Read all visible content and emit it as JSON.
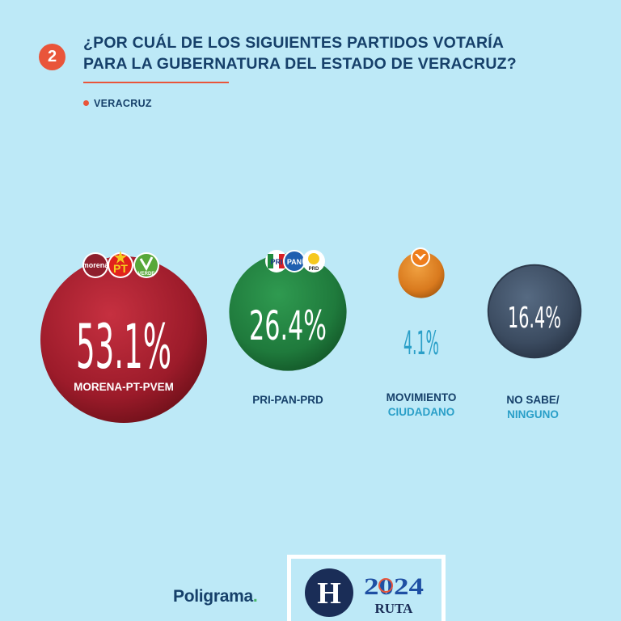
{
  "header": {
    "number": "2",
    "question_lines": [
      "¿POR CUÁL DE LOS SIGUIENTES PARTIDOS VOTARÍA",
      "PARA LA GUBERNATURA DEL ESTADO DE VERACRUZ?"
    ],
    "region": "VERACRUZ"
  },
  "chart_data": {
    "type": "bubble",
    "categories": [
      "MORENA-PT-PVEM",
      "PRI-PAN-PRD",
      "MOVIMIENTO CIUDADANO",
      "NO SABE/ NINGUNO"
    ],
    "values": [
      53.1,
      26.4,
      4.1,
      16.4
    ],
    "value_labels": [
      "53.1%",
      "26.4%",
      "4.1%",
      "16.4%"
    ],
    "label_lines": [
      [
        "MORENA-PT-PVEM"
      ],
      [
        "PRI-PAN-PRD"
      ],
      [
        "MOVIMIENTO",
        "CIUDADANO"
      ],
      [
        "NO SABE/",
        "NINGUNO"
      ]
    ],
    "colors": [
      "#9c1b2a",
      "#1f7a3c",
      "#d97a1e",
      "#3b4b60"
    ]
  },
  "logos": {
    "morena": "morena",
    "pt": "PT",
    "verde": "VERDE",
    "pri": "PRI",
    "pan": "PAN",
    "prd": "PRD",
    "mc": "MOVIMIENTO CIUDADANO"
  },
  "footer": {
    "brand_main": "Poligrama",
    "brand_dot": ".",
    "h_logo": "H",
    "year": "2024",
    "ruta": "RUTA"
  }
}
